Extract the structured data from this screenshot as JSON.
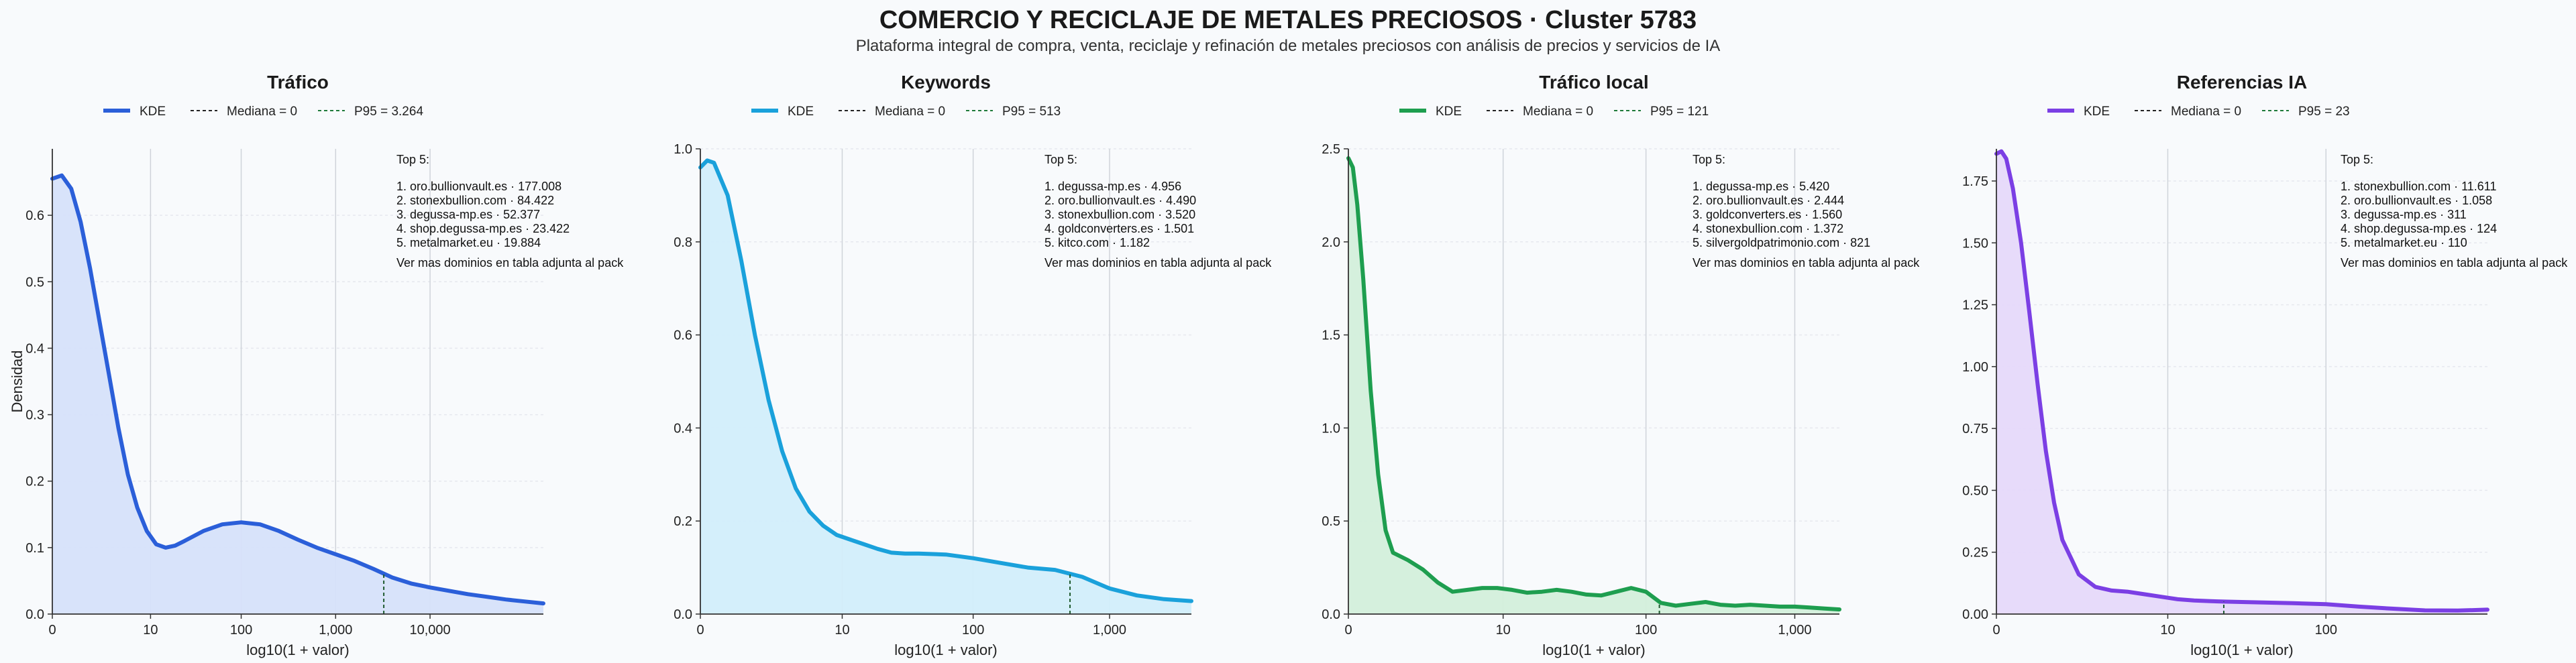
{
  "title": "COMERCIO Y RECICLAJE DE METALES PRECIOSOS · Cluster 5783",
  "subtitle": "Plataforma integral de compra, venta, reciclaje y refinación de metales preciosos con análisis de precios y servicios de IA",
  "chart_data": [
    {
      "type": "area",
      "title": "Tráfico",
      "color": "#2b5fd9",
      "fill": "#d6e1fa",
      "xlabel": "log10(1 + valor)",
      "ylabel": "Densidad",
      "xlim": [
        0,
        5.2
      ],
      "ylim": [
        0,
        0.7
      ],
      "yticks": [
        0.0,
        0.1,
        0.2,
        0.3,
        0.4,
        0.5,
        0.6
      ],
      "ytick_labels": [
        "0.0",
        "0.1",
        "0.2",
        "0.3",
        "0.4",
        "0.5",
        "0.6"
      ],
      "xticks": [
        0,
        1.04,
        2.0,
        3.0,
        4.0
      ],
      "xtick_labels": [
        "0",
        "10",
        "100",
        "1,000",
        "10,000"
      ],
      "legend": [
        "KDE",
        "Mediana = 0",
        "P95 = 3.264"
      ],
      "p95_x": 3.51,
      "x": [
        0,
        0.1,
        0.2,
        0.3,
        0.4,
        0.5,
        0.6,
        0.7,
        0.8,
        0.9,
        1.0,
        1.1,
        1.2,
        1.3,
        1.4,
        1.6,
        1.8,
        2.0,
        2.2,
        2.4,
        2.6,
        2.8,
        3.0,
        3.2,
        3.4,
        3.6,
        3.8,
        4.0,
        4.2,
        4.4,
        4.6,
        4.8,
        5.0,
        5.2
      ],
      "y": [
        0.655,
        0.66,
        0.64,
        0.59,
        0.52,
        0.44,
        0.36,
        0.28,
        0.21,
        0.16,
        0.125,
        0.105,
        0.1,
        0.103,
        0.11,
        0.125,
        0.135,
        0.138,
        0.135,
        0.125,
        0.112,
        0.1,
        0.09,
        0.08,
        0.068,
        0.055,
        0.046,
        0.04,
        0.035,
        0.03,
        0.026,
        0.022,
        0.019,
        0.016
      ],
      "top5_title": "Top 5:",
      "top5": [
        "1. oro.bullionvault.es · 177.008",
        "2. stonexbullion.com · 84.422",
        "3. degussa-mp.es · 52.377",
        "4. shop.degussa-mp.es · 23.422",
        "5. metalmarket.eu · 19.884"
      ],
      "top5_note": "Ver mas dominios en tabla adjunta al pack"
    },
    {
      "type": "area",
      "title": "Keywords",
      "color": "#1aa1db",
      "fill": "#d2eefb",
      "xlabel": "log10(1 + valor)",
      "ylabel": "",
      "xlim": [
        0,
        3.6
      ],
      "ylim": [
        0,
        1.0
      ],
      "yticks": [
        0.0,
        0.2,
        0.4,
        0.6,
        0.8,
        1.0
      ],
      "ytick_labels": [
        "0.0",
        "0.2",
        "0.4",
        "0.6",
        "0.8",
        "1.0"
      ],
      "xticks": [
        0,
        1.04,
        2.0,
        3.0
      ],
      "xtick_labels": [
        "0",
        "10",
        "100",
        "1,000"
      ],
      "legend": [
        "KDE",
        "Mediana = 0",
        "P95 = 513"
      ],
      "p95_x": 2.71,
      "x": [
        0,
        0.05,
        0.1,
        0.2,
        0.3,
        0.4,
        0.5,
        0.6,
        0.7,
        0.8,
        0.9,
        1.0,
        1.1,
        1.2,
        1.3,
        1.4,
        1.5,
        1.6,
        1.8,
        2.0,
        2.2,
        2.4,
        2.6,
        2.8,
        3.0,
        3.2,
        3.4,
        3.6
      ],
      "y": [
        0.96,
        0.975,
        0.97,
        0.9,
        0.76,
        0.6,
        0.46,
        0.35,
        0.27,
        0.22,
        0.19,
        0.17,
        0.16,
        0.15,
        0.14,
        0.132,
        0.13,
        0.13,
        0.128,
        0.12,
        0.11,
        0.1,
        0.095,
        0.08,
        0.055,
        0.04,
        0.032,
        0.028
      ],
      "top5_title": "Top 5:",
      "top5": [
        "1. degussa-mp.es · 4.956",
        "2. oro.bullionvault.es · 4.490",
        "3. stonexbullion.com · 3.520",
        "4. goldconverters.es · 1.501",
        "5. kitco.com · 1.182"
      ],
      "top5_note": "Ver mas dominios en tabla adjunta al pack"
    },
    {
      "type": "area",
      "title": "Tráfico local",
      "color": "#1e9e4f",
      "fill": "#d3efdb",
      "xlabel": "log10(1 + valor)",
      "ylabel": "",
      "xlim": [
        0,
        3.3
      ],
      "ylim": [
        0,
        2.5
      ],
      "yticks": [
        0.0,
        0.5,
        1.0,
        1.5,
        2.0,
        2.5
      ],
      "ytick_labels": [
        "0.0",
        "0.5",
        "1.0",
        "1.5",
        "2.0",
        "2.5"
      ],
      "xticks": [
        0,
        1.04,
        2.0,
        3.0
      ],
      "xtick_labels": [
        "0",
        "10",
        "100",
        "1,000"
      ],
      "legend": [
        "KDE",
        "Mediana = 0",
        "P95 = 121"
      ],
      "p95_x": 2.09,
      "x": [
        0,
        0.03,
        0.06,
        0.1,
        0.15,
        0.2,
        0.25,
        0.3,
        0.4,
        0.5,
        0.6,
        0.7,
        0.8,
        0.9,
        1.0,
        1.1,
        1.2,
        1.3,
        1.4,
        1.5,
        1.6,
        1.7,
        1.8,
        1.9,
        2.0,
        2.1,
        2.2,
        2.3,
        2.4,
        2.5,
        2.6,
        2.7,
        2.8,
        2.9,
        3.0,
        3.1,
        3.2,
        3.3
      ],
      "y": [
        2.45,
        2.4,
        2.2,
        1.8,
        1.2,
        0.75,
        0.45,
        0.33,
        0.29,
        0.24,
        0.17,
        0.12,
        0.13,
        0.14,
        0.14,
        0.13,
        0.115,
        0.12,
        0.13,
        0.12,
        0.105,
        0.1,
        0.12,
        0.14,
        0.12,
        0.06,
        0.045,
        0.055,
        0.065,
        0.05,
        0.045,
        0.05,
        0.045,
        0.04,
        0.04,
        0.035,
        0.03,
        0.025
      ],
      "top5_title": "Top 5:",
      "top5": [
        "1. degussa-mp.es · 5.420",
        "2. oro.bullionvault.es · 2.444",
        "3. goldconverters.es · 1.560",
        "4. stonexbullion.com · 1.372",
        "5. silvergoldpatrimonio.com · 821"
      ],
      "top5_note": "Ver mas dominios en tabla adjunta al pack"
    },
    {
      "type": "area",
      "title": "Referencias IA",
      "color": "#7b3fe4",
      "fill": "#e6d9fa",
      "xlabel": "log10(1 + valor)",
      "ylabel": "",
      "xlim": [
        0,
        2.98
      ],
      "ylim": [
        0,
        1.88
      ],
      "yticks": [
        0.0,
        0.25,
        0.5,
        0.75,
        1.0,
        1.25,
        1.5,
        1.75
      ],
      "ytick_labels": [
        "0.00",
        "0.25",
        "0.50",
        "0.75",
        "1.00",
        "1.25",
        "1.50",
        "1.75"
      ],
      "xticks": [
        0,
        1.04,
        2.0
      ],
      "xtick_labels": [
        "0",
        "10",
        "100"
      ],
      "legend": [
        "KDE",
        "Mediana = 0",
        "P95 = 23"
      ],
      "p95_x": 1.38,
      "x": [
        0,
        0.03,
        0.06,
        0.1,
        0.15,
        0.2,
        0.25,
        0.3,
        0.35,
        0.4,
        0.5,
        0.6,
        0.7,
        0.8,
        0.9,
        1.0,
        1.1,
        1.2,
        1.3,
        1.4,
        1.6,
        1.8,
        2.0,
        2.2,
        2.4,
        2.6,
        2.8,
        2.98
      ],
      "y": [
        1.86,
        1.87,
        1.84,
        1.72,
        1.5,
        1.22,
        0.93,
        0.66,
        0.45,
        0.3,
        0.16,
        0.11,
        0.095,
        0.09,
        0.08,
        0.07,
        0.06,
        0.055,
        0.052,
        0.05,
        0.047,
        0.044,
        0.04,
        0.03,
        0.022,
        0.015,
        0.014,
        0.018
      ],
      "top5_title": "Top 5:",
      "top5": [
        "1. stonexbullion.com · 11.611",
        "2. oro.bullionvault.es · 1.058",
        "3. degussa-mp.es · 311",
        "4. shop.degussa-mp.es · 124",
        "5. metalmarket.eu · 110"
      ],
      "top5_note": "Ver mas dominios en tabla adjunta al pack"
    }
  ]
}
